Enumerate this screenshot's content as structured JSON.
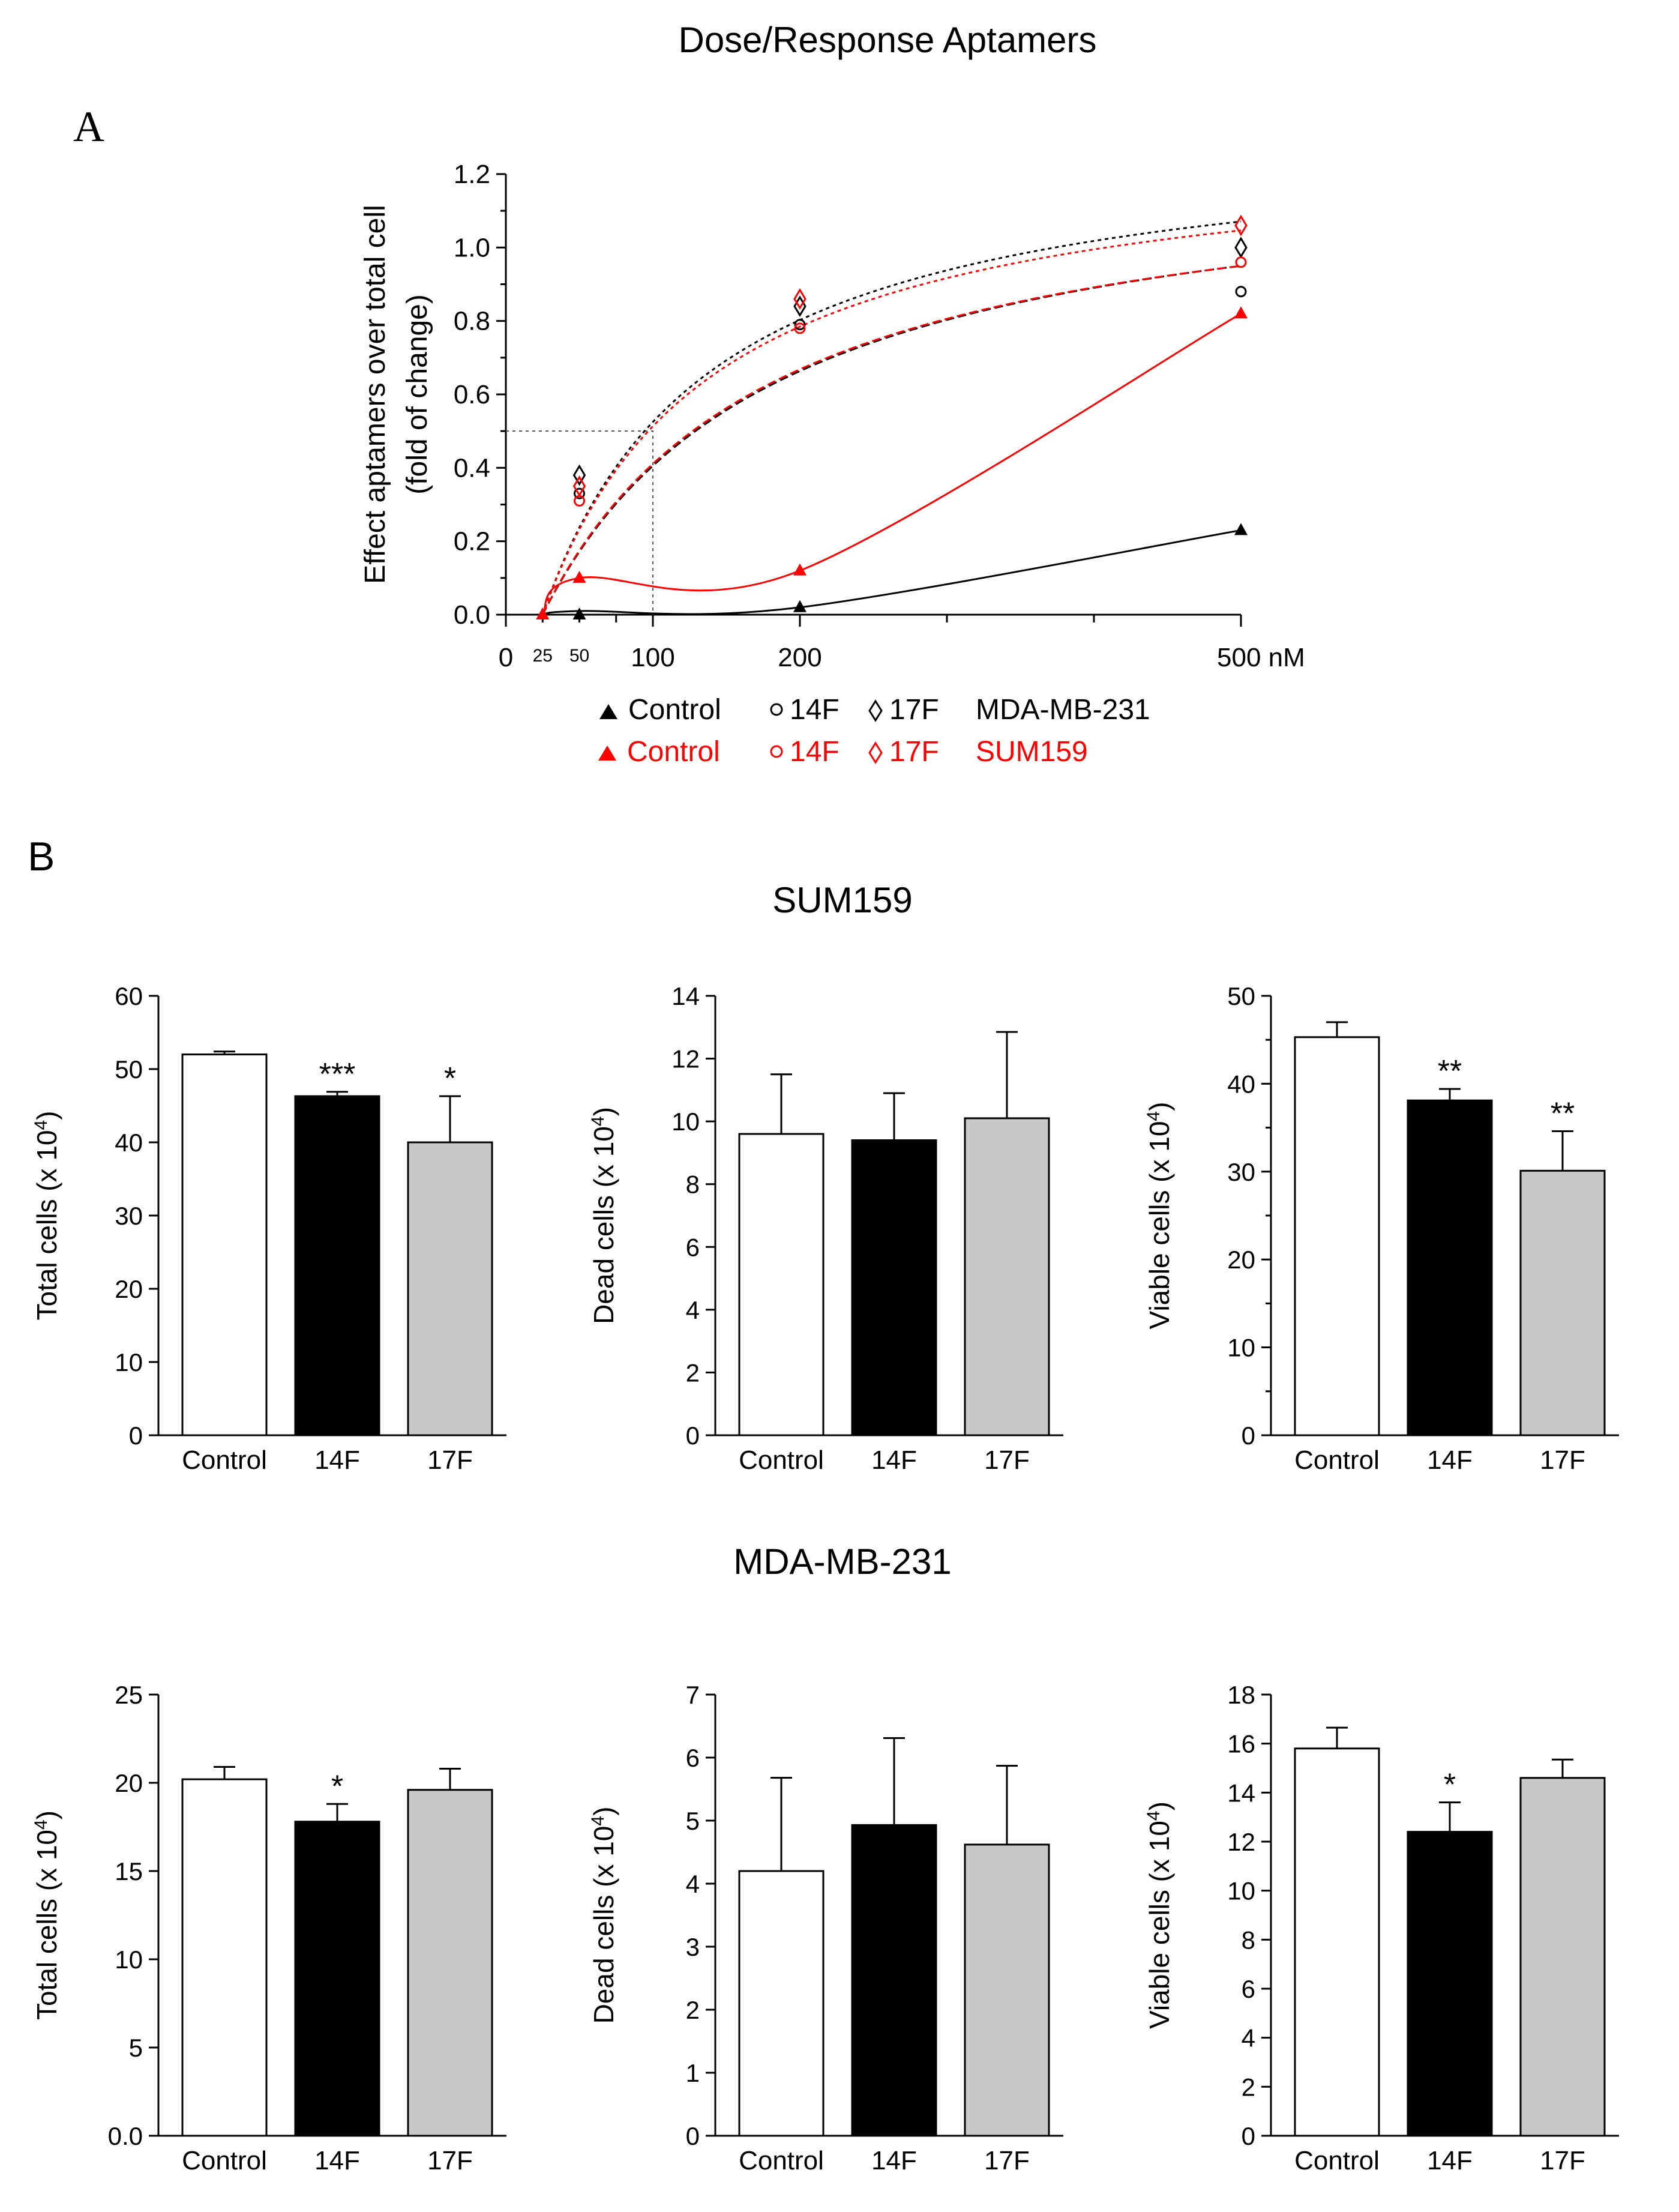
{
  "figure": {
    "title": "Dose/Response Aptamers",
    "panel_a_label": "A",
    "panel_b_label": "B",
    "sum159_heading": "SUM159",
    "mda_heading": "MDA-MB-231"
  },
  "legend": {
    "control": "Control",
    "f14": "14F",
    "f17": "17F",
    "row1_cell": "MDA-MB-231",
    "row2_cell": "SUM159"
  },
  "colors": {
    "black": "#000000",
    "red": "#ff0000",
    "gray": "#c8c8c8",
    "white": "#ffffff"
  },
  "chart_data": [
    {
      "id": "dose_response",
      "type": "line",
      "title": "Dose/Response Aptamers",
      "ylabel_line1": "Effect aptamers over total cell",
      "ylabel_line2": "(fold of change)",
      "x_unit": "nM",
      "xlim": [
        0,
        500
      ],
      "ylim": [
        0,
        1.2
      ],
      "x_ticks": [
        0,
        100,
        200,
        500
      ],
      "x_minor_ticks": [
        25,
        50,
        75,
        300,
        400
      ],
      "x_tick_labels": [
        {
          "x": 0,
          "text": "0",
          "size": "big"
        },
        {
          "x": 25,
          "text": "25",
          "size": "small"
        },
        {
          "x": 50,
          "text": "50",
          "size": "small"
        },
        {
          "x": 100,
          "text": "100",
          "size": "big"
        },
        {
          "x": 200,
          "text": "200",
          "size": "big"
        },
        {
          "x": 500,
          "text": "500 nM",
          "size": "big"
        }
      ],
      "y_ticks": [
        0,
        0.2,
        0.4,
        0.6,
        0.8,
        1.0,
        1.2
      ],
      "y_tick_labels": [
        "0.0",
        "0.2",
        "0.4",
        "0.6",
        "0.8",
        "1.0",
        "1.2"
      ],
      "guide": {
        "x": 100,
        "y": 0.5
      },
      "series": [
        {
          "name": "Control",
          "cell_line": "MDA-MB-231",
          "marker": "triangle",
          "color": "#000000",
          "x": [
            25,
            50,
            200,
            500
          ],
          "y": [
            0.0,
            0.0,
            0.02,
            0.23
          ],
          "fit": "solid",
          "fit_y": [
            0.0,
            0.01,
            0.02,
            0.23
          ]
        },
        {
          "name": "Control",
          "cell_line": "SUM159",
          "marker": "triangle",
          "color": "#ff0000",
          "x": [
            25,
            50,
            200,
            500
          ],
          "y": [
            0.0,
            0.1,
            0.12,
            0.82
          ],
          "fit": "solid",
          "fit_y": [
            0.0,
            0.1,
            0.12,
            0.82
          ]
        },
        {
          "name": "14F",
          "cell_line": "MDA-MB-231",
          "marker": "circle",
          "color": "#000000",
          "x": [
            50,
            200,
            500
          ],
          "y": [
            0.33,
            0.79,
            0.88
          ],
          "fit": "dashed",
          "fit_ymax": 1.27,
          "fit_ec50": 160
        },
        {
          "name": "17F",
          "cell_line": "MDA-MB-231",
          "marker": "diamond",
          "color": "#000000",
          "x": [
            50,
            200,
            500
          ],
          "y": [
            0.38,
            0.84,
            1.0
          ],
          "fit": "dotted",
          "fit_ymax": 1.33,
          "fit_ec50": 115
        },
        {
          "name": "14F",
          "cell_line": "SUM159",
          "marker": "circle",
          "color": "#ff0000",
          "x": [
            50,
            200,
            500
          ],
          "y": [
            0.31,
            0.78,
            0.96
          ],
          "fit": "dashed",
          "fit_ymax": 1.26,
          "fit_ec50": 155
        },
        {
          "name": "17F",
          "cell_line": "SUM159",
          "marker": "diamond",
          "color": "#ff0000",
          "x": [
            50,
            200,
            500
          ],
          "y": [
            0.35,
            0.86,
            1.06
          ],
          "fit": "dotted",
          "fit_ymax": 1.3,
          "fit_ec50": 115
        }
      ]
    },
    {
      "id": "sum159_total",
      "type": "bar",
      "cell_line": "SUM159",
      "ylabel": "Total cells (x 10",
      "exponent": "4",
      "ylabel_end": ")",
      "categories": [
        "Control",
        "14F",
        "17F"
      ],
      "values": [
        52.0,
        46.3,
        40.0
      ],
      "errors": [
        0.4,
        0.6,
        6.3
      ],
      "significance": [
        "",
        "***",
        "*"
      ],
      "ylim": [
        0,
        60
      ],
      "y_ticks": [
        0,
        10,
        20,
        30,
        40,
        50,
        60
      ],
      "y_tick_labels": [
        "0",
        "10",
        "20",
        "30",
        "40",
        "50",
        "60"
      ]
    },
    {
      "id": "sum159_dead",
      "type": "bar",
      "cell_line": "SUM159",
      "ylabel": "Dead cells (x 10",
      "exponent": "4",
      "ylabel_end": ")",
      "categories": [
        "Control",
        "14F",
        "17F"
      ],
      "values": [
        9.6,
        9.4,
        10.1
      ],
      "errors": [
        1.9,
        1.5,
        2.75
      ],
      "significance": [
        "",
        "",
        ""
      ],
      "ylim": [
        0,
        14
      ],
      "y_ticks": [
        0,
        2,
        4,
        6,
        8,
        10,
        12,
        14
      ],
      "y_tick_labels": [
        "0",
        "2",
        "4",
        "6",
        "8",
        "10",
        "12",
        "14"
      ]
    },
    {
      "id": "sum159_viable",
      "type": "bar",
      "cell_line": "SUM159",
      "ylabel": "Viable cells (x 10",
      "exponent": "4",
      "ylabel_end": ")",
      "categories": [
        "Control",
        "14F",
        "17F"
      ],
      "values": [
        45.3,
        38.1,
        30.1
      ],
      "errors": [
        1.7,
        1.3,
        4.5
      ],
      "significance": [
        "",
        "**",
        "**"
      ],
      "ylim": [
        0,
        50
      ],
      "y_ticks": [
        0,
        10,
        20,
        30,
        40,
        50
      ],
      "y_tick_labels": [
        "0",
        "10",
        "20",
        "30",
        "40",
        "50"
      ],
      "y_minor_ticks": [
        5,
        15,
        25,
        35,
        45
      ]
    },
    {
      "id": "mda_total",
      "type": "bar",
      "cell_line": "MDA-MB-231",
      "ylabel": "Total cells (x 10",
      "exponent": "4",
      "ylabel_end": ")",
      "categories": [
        "Control",
        "14F",
        "17F"
      ],
      "values": [
        20.2,
        17.8,
        19.6
      ],
      "errors": [
        0.7,
        1.0,
        1.2
      ],
      "significance": [
        "",
        "*",
        ""
      ],
      "ylim": [
        0,
        25
      ],
      "y_ticks": [
        0,
        5,
        10,
        15,
        20,
        25
      ],
      "y_tick_labels": [
        "0.0",
        "5",
        "10",
        "15",
        "20",
        "25"
      ]
    },
    {
      "id": "mda_dead",
      "type": "bar",
      "cell_line": "MDA-MB-231",
      "ylabel": "Dead cells (x 10",
      "exponent": "4",
      "ylabel_end": ")",
      "categories": [
        "Control",
        "14F",
        "17F"
      ],
      "values": [
        4.2,
        4.93,
        4.62
      ],
      "errors": [
        1.48,
        1.38,
        1.25
      ],
      "significance": [
        "",
        "",
        ""
      ],
      "ylim": [
        0,
        7
      ],
      "y_ticks": [
        0,
        1,
        2,
        3,
        4,
        5,
        6,
        7
      ],
      "y_tick_labels": [
        "0",
        "1",
        "2",
        "3",
        "4",
        "5",
        "6",
        "7"
      ]
    },
    {
      "id": "mda_viable",
      "type": "bar",
      "cell_line": "MDA-MB-231",
      "ylabel": "Viable cells (x 10",
      "exponent": "4",
      "ylabel_end": ")",
      "categories": [
        "Control",
        "14F",
        "17F"
      ],
      "values": [
        15.8,
        12.4,
        14.6
      ],
      "errors": [
        0.85,
        1.2,
        0.75
      ],
      "significance": [
        "",
        "*",
        ""
      ],
      "ylim": [
        0,
        18
      ],
      "y_ticks": [
        0,
        2,
        4,
        6,
        8,
        10,
        12,
        14,
        16,
        18
      ],
      "y_tick_labels": [
        "0",
        "2",
        "4",
        "6",
        "8",
        "10",
        "12",
        "14",
        "16",
        "18"
      ]
    }
  ]
}
